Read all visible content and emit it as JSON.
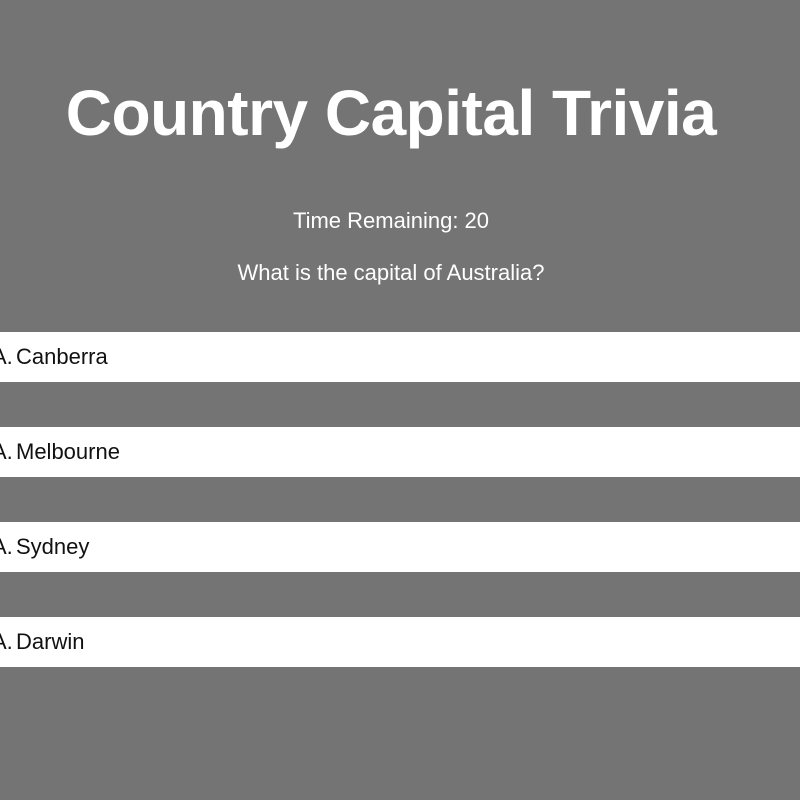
{
  "header": {
    "title": "Country Capital Trivia"
  },
  "quiz": {
    "timer_text": "Time Remaining: 20",
    "question": "What is the capital of Australia?",
    "answers": [
      {
        "prefix": "A.",
        "text": "Canberra"
      },
      {
        "prefix": "A.",
        "text": "Melbourne"
      },
      {
        "prefix": "A.",
        "text": "Sydney"
      },
      {
        "prefix": "A.",
        "text": "Darwin"
      }
    ]
  },
  "colors": {
    "background": "#747474",
    "answer_background": "#ffffff",
    "header_text": "#ffffff",
    "answer_text": "#111111"
  }
}
